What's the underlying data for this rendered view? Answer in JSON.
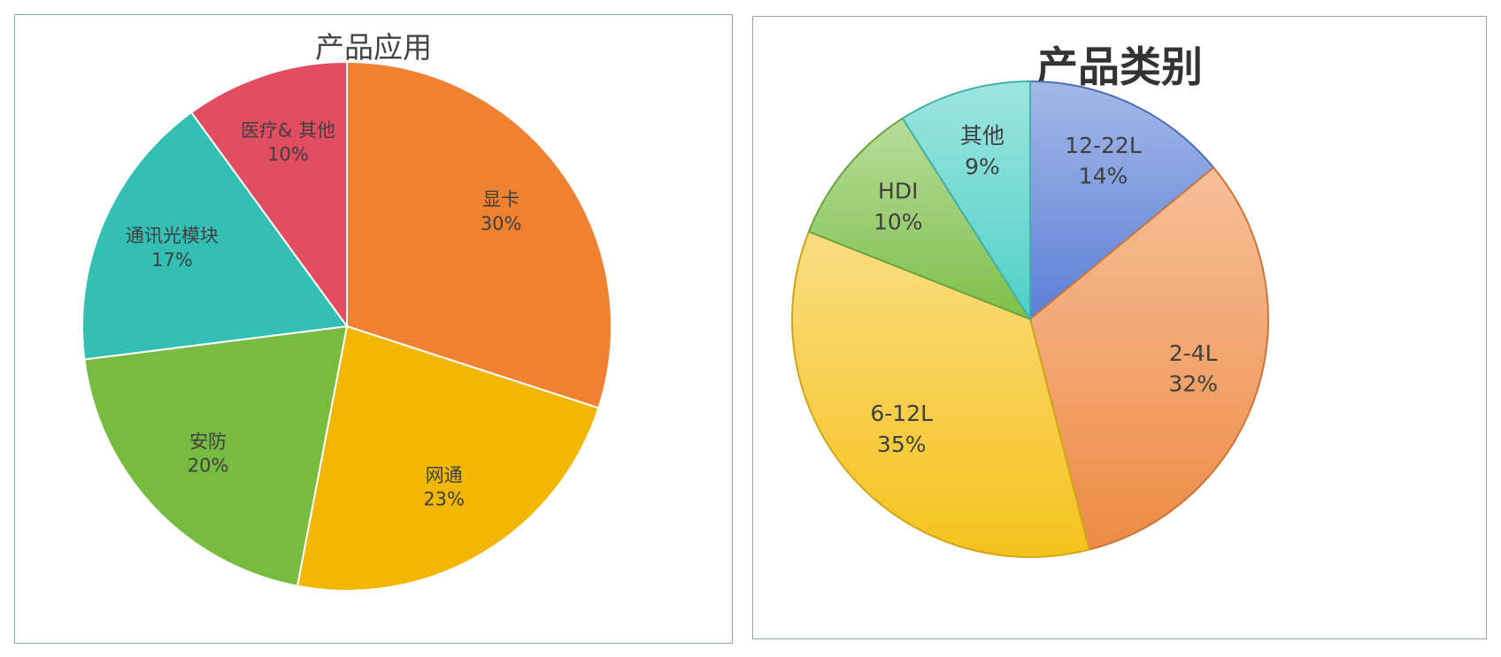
{
  "chart_data": [
    {
      "type": "pie",
      "title": "产品应用",
      "categories": [
        "显卡",
        "网通",
        "安防",
        "通讯光模块",
        "医疗& 其他"
      ],
      "values": [
        30,
        23,
        20,
        17,
        10
      ],
      "value_labels": [
        "30%",
        "23%",
        "20%",
        "17%",
        "10%"
      ],
      "colors": [
        "#ee8231",
        "#f2b705",
        "#77bb41",
        "#33bfb4",
        "#e24d62"
      ],
      "legend": "none"
    },
    {
      "type": "pie",
      "title": "产品类别",
      "categories": [
        "12-22L",
        "2-4L",
        "6-12L",
        "HDI",
        "其他"
      ],
      "values": [
        14,
        32,
        35,
        10,
        9
      ],
      "value_labels": [
        "14%",
        "32%",
        "35%",
        "10%",
        "9%"
      ],
      "colors": [
        "#5a7fd6",
        "#ee8b45",
        "#f5c21b",
        "#7ec04a",
        "#4fd0c6"
      ],
      "legend": "none"
    }
  ]
}
